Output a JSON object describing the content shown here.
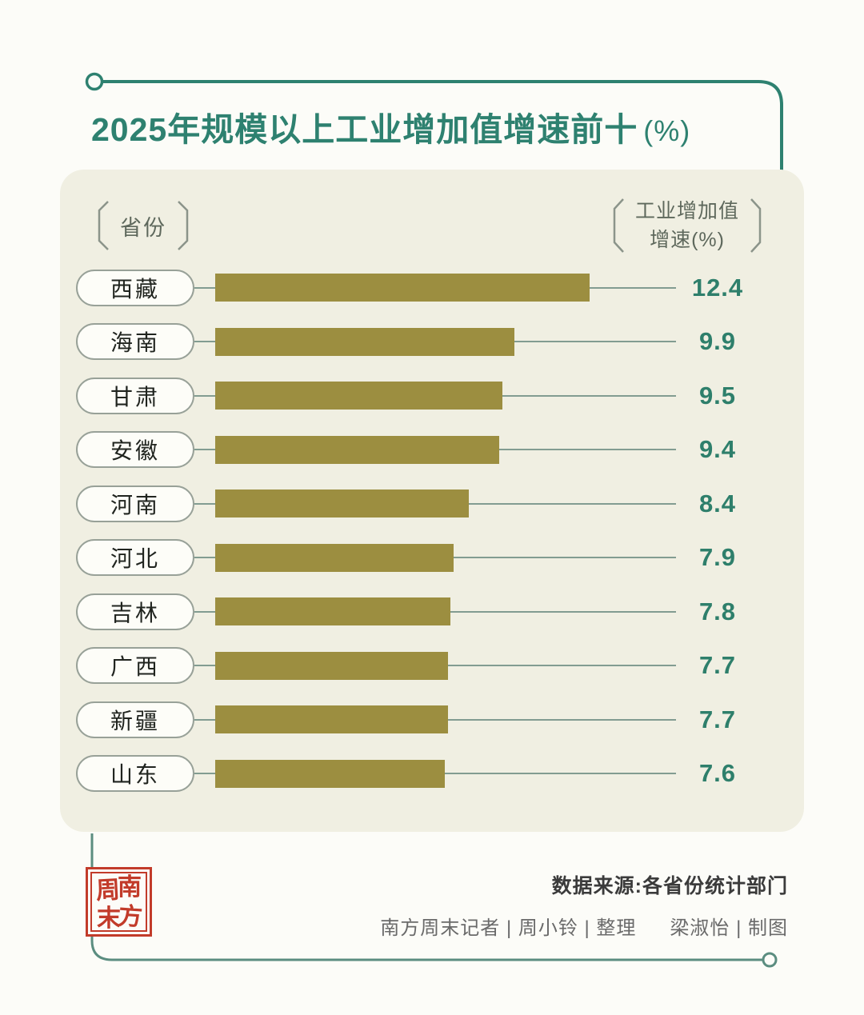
{
  "title": {
    "text": "2025年规模以上工业增加值增速前十",
    "suffix": "(%)"
  },
  "panel_header": {
    "category_label": "省份",
    "value_label_line1": "工业增加值",
    "value_label_line2": "增速(%)"
  },
  "chart_data": {
    "type": "bar",
    "orientation": "horizontal",
    "title": "2025年规模以上工业增加值增速前十(%)",
    "category_header": "省份",
    "value_header": "工业增加值增速(%)",
    "categories": [
      "西藏",
      "海南",
      "甘肃",
      "安徽",
      "河南",
      "河北",
      "吉林",
      "广西",
      "新疆",
      "山东"
    ],
    "values": [
      12.4,
      9.9,
      9.5,
      9.4,
      8.4,
      7.9,
      7.8,
      7.7,
      7.7,
      7.6
    ],
    "value_labels": [
      "12.4",
      "9.9",
      "9.5",
      "9.4",
      "8.4",
      "7.9",
      "7.8",
      "7.7",
      "7.7",
      "7.6"
    ],
    "xlim": [
      0,
      12.4
    ],
    "grid": false,
    "legend": false,
    "bar_color": "#9c8e40",
    "value_text_color": "#2e7f6b"
  },
  "footer": {
    "source": "数据来源:各省份统计部门",
    "credits": "南方周末记者 | 周小铃 | 整理",
    "credits2": "梁淑怡 | 制图",
    "stamp": {
      "chars": [
        "周",
        "南",
        "末",
        "方"
      ]
    }
  },
  "colors": {
    "accent_teal": "#2e8170",
    "bar_olive": "#9c8e40",
    "panel_bg": "#f0efe2",
    "stamp_red": "#c23b2a",
    "line_grey_teal": "#829c91"
  }
}
